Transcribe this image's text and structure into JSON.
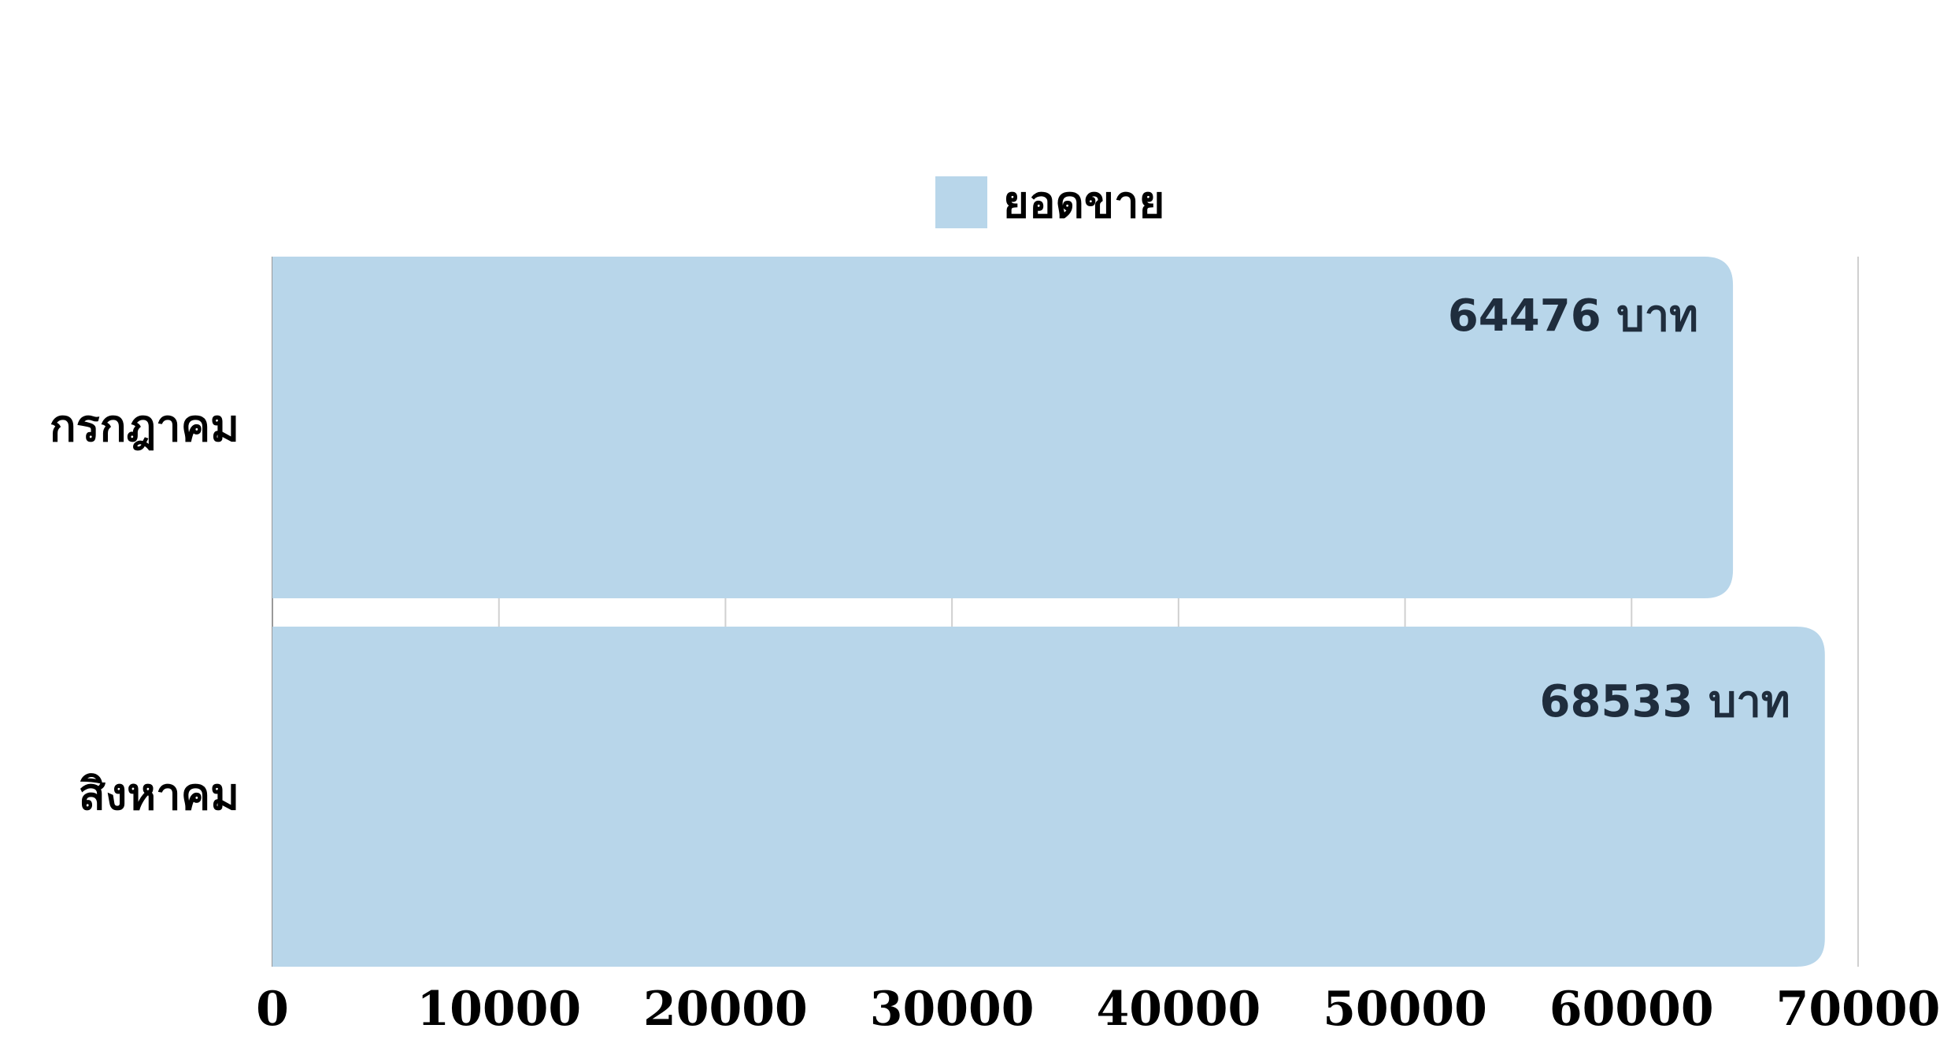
{
  "chart_data": {
    "type": "bar",
    "orientation": "horizontal",
    "categories": [
      "กรกฎาคม",
      "สิงหาคม"
    ],
    "series": [
      {
        "name": "ยอดขาย",
        "values": [
          64476,
          68533
        ],
        "color": "#b8d6ea"
      }
    ],
    "data_labels": [
      "64476 บาท",
      "68533 บาท"
    ],
    "xlim": [
      0,
      70000
    ],
    "x_ticks": [
      0,
      10000,
      20000,
      30000,
      40000,
      50000,
      60000,
      70000
    ],
    "grid": true,
    "legend_position": "top"
  }
}
